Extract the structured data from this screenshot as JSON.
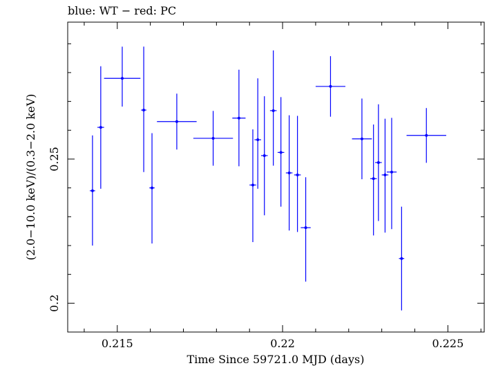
{
  "chart_data": {
    "type": "scatter",
    "title": "blue: WT − red: PC",
    "xlabel": "Time Since 59721.0 MJD (days)",
    "ylabel": "(2.0−10.0 keV)/(0.3−2.0 keV)",
    "xlim": [
      0.2135,
      0.2261
    ],
    "ylim": [
      0.19,
      0.2975
    ],
    "log_y": false,
    "grid": false,
    "xticks": [
      {
        "value": 0.215,
        "label": "0.215"
      },
      {
        "value": 0.22,
        "label": "0.22"
      },
      {
        "value": 0.225,
        "label": "0.225"
      }
    ],
    "yticks": [
      {
        "value": 0.2,
        "label": "0.2"
      },
      {
        "value": 0.25,
        "label": "0.25"
      }
    ],
    "series": [
      {
        "color": "#0000ff",
        "points": [
          {
            "x": 0.21425,
            "y": 0.239,
            "xerr": 8e-05,
            "ylo": 0.22,
            "yhi": 0.2582
          },
          {
            "x": 0.2145,
            "y": 0.261,
            "xerr": 0.0001,
            "ylo": 0.2397,
            "yhi": 0.2822
          },
          {
            "x": 0.21515,
            "y": 0.278,
            "xerr": 0.00055,
            "ylo": 0.2682,
            "yhi": 0.289
          },
          {
            "x": 0.2158,
            "y": 0.267,
            "xerr": 8e-05,
            "ylo": 0.2455,
            "yhi": 0.289
          },
          {
            "x": 0.21605,
            "y": 0.24,
            "xerr": 8e-05,
            "ylo": 0.2207,
            "yhi": 0.259
          },
          {
            "x": 0.2168,
            "y": 0.263,
            "xerr": 0.0006,
            "ylo": 0.2533,
            "yhi": 0.2727
          },
          {
            "x": 0.2179,
            "y": 0.2572,
            "xerr": 0.0006,
            "ylo": 0.2477,
            "yhi": 0.2667
          },
          {
            "x": 0.21868,
            "y": 0.2642,
            "xerr": 0.0002,
            "ylo": 0.2475,
            "yhi": 0.281
          },
          {
            "x": 0.2191,
            "y": 0.241,
            "xerr": 0.0001,
            "ylo": 0.2212,
            "yhi": 0.2603
          },
          {
            "x": 0.21925,
            "y": 0.2567,
            "xerr": 0.0001,
            "ylo": 0.2397,
            "yhi": 0.278
          },
          {
            "x": 0.21945,
            "y": 0.2512,
            "xerr": 0.0001,
            "ylo": 0.2305,
            "yhi": 0.2718
          },
          {
            "x": 0.21972,
            "y": 0.2668,
            "xerr": 0.0001,
            "ylo": 0.2477,
            "yhi": 0.2877
          },
          {
            "x": 0.21995,
            "y": 0.2523,
            "xerr": 0.0001,
            "ylo": 0.2335,
            "yhi": 0.2715
          },
          {
            "x": 0.2202,
            "y": 0.2452,
            "xerr": 0.0001,
            "ylo": 0.2252,
            "yhi": 0.2652
          },
          {
            "x": 0.22045,
            "y": 0.2445,
            "xerr": 0.0001,
            "ylo": 0.2247,
            "yhi": 0.265
          },
          {
            "x": 0.2207,
            "y": 0.2262,
            "xerr": 0.00015,
            "ylo": 0.2075,
            "yhi": 0.2437
          },
          {
            "x": 0.22145,
            "y": 0.2752,
            "xerr": 0.00045,
            "ylo": 0.2647,
            "yhi": 0.2857
          },
          {
            "x": 0.2224,
            "y": 0.257,
            "xerr": 0.0003,
            "ylo": 0.243,
            "yhi": 0.271
          },
          {
            "x": 0.22275,
            "y": 0.2432,
            "xerr": 0.0001,
            "ylo": 0.2235,
            "yhi": 0.262
          },
          {
            "x": 0.2229,
            "y": 0.2488,
            "xerr": 0.0001,
            "ylo": 0.2285,
            "yhi": 0.269
          },
          {
            "x": 0.2231,
            "y": 0.2445,
            "xerr": 0.0001,
            "ylo": 0.2245,
            "yhi": 0.264
          },
          {
            "x": 0.2233,
            "y": 0.2455,
            "xerr": 0.00015,
            "ylo": 0.2257,
            "yhi": 0.2643
          },
          {
            "x": 0.2236,
            "y": 0.2155,
            "xerr": 8e-05,
            "ylo": 0.1975,
            "yhi": 0.2335
          },
          {
            "x": 0.22435,
            "y": 0.2582,
            "xerr": 0.0006,
            "ylo": 0.2487,
            "yhi": 0.2677
          }
        ]
      }
    ]
  }
}
